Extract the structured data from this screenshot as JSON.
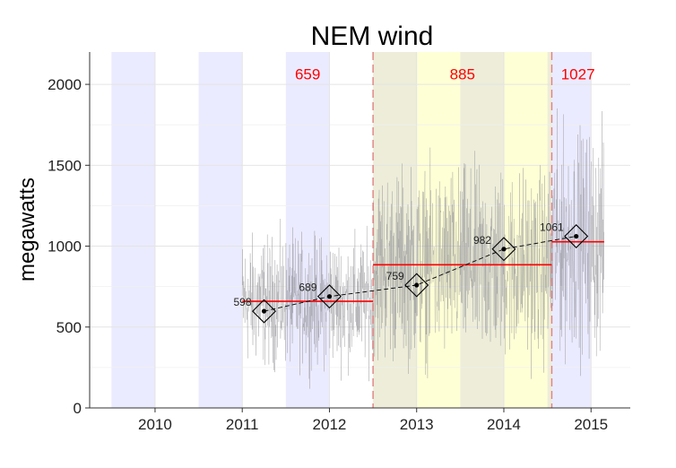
{
  "chart_data": {
    "type": "line",
    "title": "NEM wind",
    "ylabel": "megawatts",
    "xlabel": "",
    "xlim": [
      2009.25,
      2015.45
    ],
    "ylim": [
      0,
      2200
    ],
    "x_ticks": [
      2010,
      2011,
      2012,
      2013,
      2014,
      2015
    ],
    "y_ticks": [
      0,
      500,
      1000,
      1500,
      2000
    ],
    "grid": true,
    "colors": {
      "blue_band": "#ebebff",
      "olive_band": "#ededd9",
      "yellow_band": "#ffffd6",
      "raw_series": "#8f9095",
      "period_mean": "#ff0000",
      "divider": "#e08080",
      "trend": "#000000"
    },
    "shaded_bands": [
      {
        "color": "blue",
        "x0": 2009.5,
        "x1": 2010.0
      },
      {
        "color": "blue",
        "x0": 2010.5,
        "x1": 2011.0
      },
      {
        "color": "blue",
        "x0": 2011.5,
        "x1": 2012.0
      },
      {
        "color": "olive",
        "x0": 2012.5,
        "x1": 2013.0
      },
      {
        "color": "yellow",
        "x0": 2013.0,
        "x1": 2013.5
      },
      {
        "color": "olive",
        "x0": 2013.5,
        "x1": 2014.0
      },
      {
        "color": "yellow",
        "x0": 2014.0,
        "x1": 2014.5
      },
      {
        "color": "olive",
        "x0": 2014.5,
        "x1": 2014.55
      },
      {
        "color": "blue",
        "x0": 2014.55,
        "x1": 2015.0
      }
    ],
    "period_dividers": [
      2012.5,
      2014.55
    ],
    "period_means": [
      {
        "label": "659",
        "x0": 2011.0,
        "x1": 2012.5,
        "value": 659
      },
      {
        "label": "885",
        "x0": 2012.5,
        "x1": 2014.55,
        "value": 885
      },
      {
        "label": "1027",
        "x0": 2014.55,
        "x1": 2015.15,
        "value": 1027
      }
    ],
    "annual_points": [
      {
        "label": "598",
        "x": 2011.25,
        "value": 598
      },
      {
        "label": "689",
        "x": 2012.0,
        "value": 689
      },
      {
        "label": "759",
        "x": 2013.0,
        "value": 759
      },
      {
        "label": "982",
        "x": 2014.0,
        "value": 982
      },
      {
        "label": "1061",
        "x": 2014.83,
        "value": 1061
      }
    ],
    "raw_series": {
      "x_start": 2011.0,
      "x_end": 2015.15,
      "segments": [
        {
          "x0": 2011.0,
          "x1": 2012.5,
          "mean": 659,
          "spread": 380
        },
        {
          "x0": 2012.5,
          "x1": 2014.55,
          "mean": 885,
          "spread": 560
        },
        {
          "x0": 2014.55,
          "x1": 2015.15,
          "mean": 1027,
          "spread": 650
        }
      ]
    }
  }
}
